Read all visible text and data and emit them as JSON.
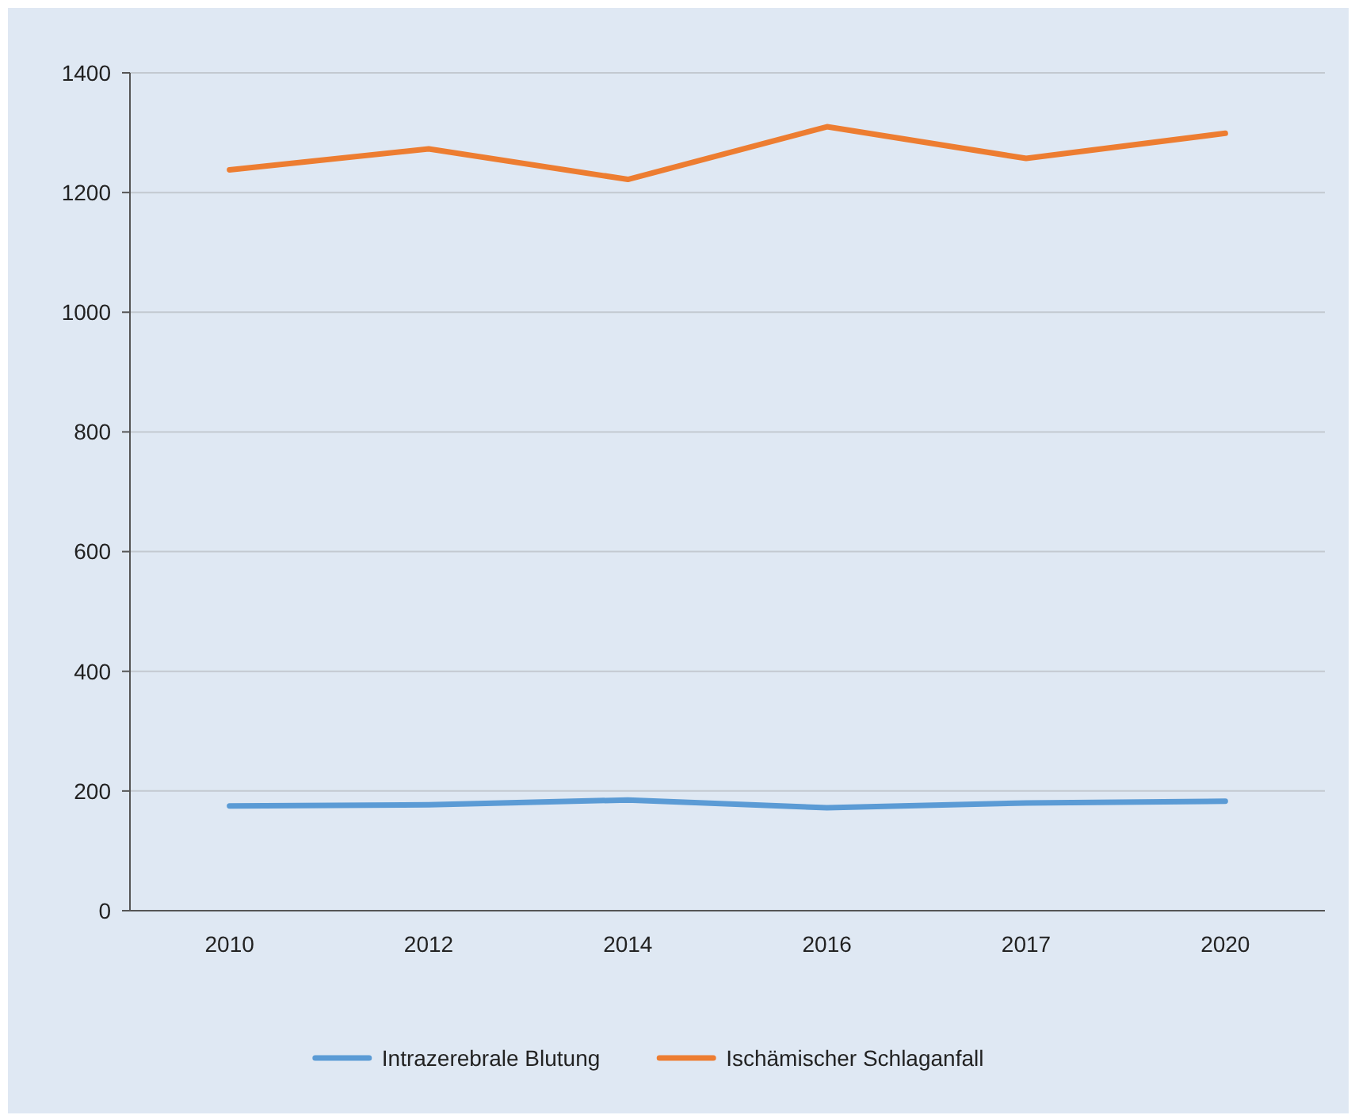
{
  "chart_data": {
    "type": "line",
    "categories": [
      "2010",
      "2012",
      "2014",
      "2016",
      "2017",
      "2020"
    ],
    "series": [
      {
        "name": "Intrazerebrale Blutung",
        "color": "#5b9bd5",
        "values": [
          175,
          177,
          185,
          172,
          180,
          183
        ]
      },
      {
        "name": "Ischämischer Schlaganfall",
        "color": "#ed7d31",
        "values": [
          1238,
          1273,
          1222,
          1310,
          1257,
          1299
        ]
      }
    ],
    "ylim": [
      0,
      1400
    ],
    "yticks": [
      0,
      200,
      400,
      600,
      800,
      1000,
      1200,
      1400
    ],
    "grid": "y",
    "legend": "bottom",
    "marker": "none",
    "line_style": "solid"
  }
}
